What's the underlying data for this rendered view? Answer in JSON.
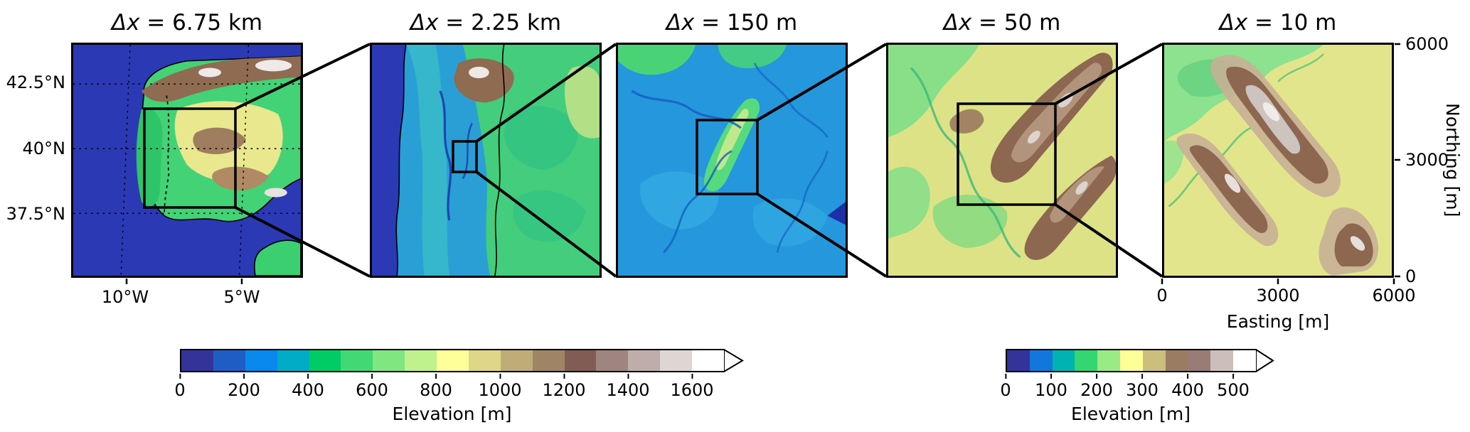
{
  "panels": [
    {
      "symbol": "Δx",
      "resolution": " = 6.75 km"
    },
    {
      "symbol": "Δx",
      "resolution": " = 2.25 km"
    },
    {
      "symbol": "Δx",
      "resolution": " = 150 m"
    },
    {
      "symbol": "Δx",
      "resolution": " = 50 m"
    },
    {
      "symbol": "Δx",
      "resolution": " = 10 m"
    }
  ],
  "geo_axis": {
    "lat_ticks": [
      "42.5°N",
      "40°N",
      "37.5°N"
    ],
    "lon_ticks": [
      "10°W",
      "5°W"
    ]
  },
  "metric_axis": {
    "y_label": "Northing [m]",
    "y_ticks": [
      "6000",
      "3000",
      "0"
    ],
    "x_label": "Easting [m]",
    "x_ticks": [
      "0",
      "3000",
      "6000"
    ]
  },
  "colorbars": [
    {
      "label": "Elevation [m]",
      "ticks": [
        "0",
        "200",
        "400",
        "600",
        "800",
        "1000",
        "1200",
        "1400",
        "1600"
      ],
      "colors": [
        "#333399",
        "#1e5ec4",
        "#0988ee",
        "#00acc6",
        "#00cc66",
        "#40d973",
        "#80e680",
        "#bff28c",
        "#ffff99",
        "#dfd688",
        "#bfad77",
        "#9f8565",
        "#805c54",
        "#9f857f",
        "#bfadaa",
        "#dfd6d4",
        "#ffffff"
      ],
      "arrow_color": "#ffffff"
    },
    {
      "label": "Elevation [m]",
      "ticks": [
        "0",
        "100",
        "200",
        "300",
        "400",
        "500"
      ],
      "colors": [
        "#333399",
        "#1177dd",
        "#00b3b3",
        "#33d670",
        "#99eb85",
        "#ffff99",
        "#ccbe7d",
        "#997c62",
        "#997c76",
        "#ccbebb",
        "#ffffff"
      ],
      "arrow_color": "#ffffff"
    }
  ],
  "chart_data": {
    "type": "heatmap",
    "variable": "Elevation [m]",
    "panels": [
      {
        "grid_spacing": "6.75 km"
      },
      {
        "grid_spacing": "2.25 km"
      },
      {
        "grid_spacing": "150 m"
      },
      {
        "grid_spacing": "50 m"
      },
      {
        "grid_spacing": "10 m"
      }
    ],
    "left_panel_axes": {
      "latitude": [
        "37.5°N",
        "40°N",
        "42.5°N"
      ],
      "longitude": [
        "10°W",
        "5°W"
      ]
    },
    "right_panel_axes": {
      "easting_m": [
        0,
        3000,
        6000
      ],
      "northing_m": [
        0,
        3000,
        6000
      ]
    },
    "colorbar_left": {
      "range_m": [
        0,
        1600
      ],
      "tick_step_m": 200,
      "extend": "max"
    },
    "colorbar_right": {
      "range_m": [
        0,
        500
      ],
      "tick_step_m": 100,
      "extend": "max"
    }
  }
}
